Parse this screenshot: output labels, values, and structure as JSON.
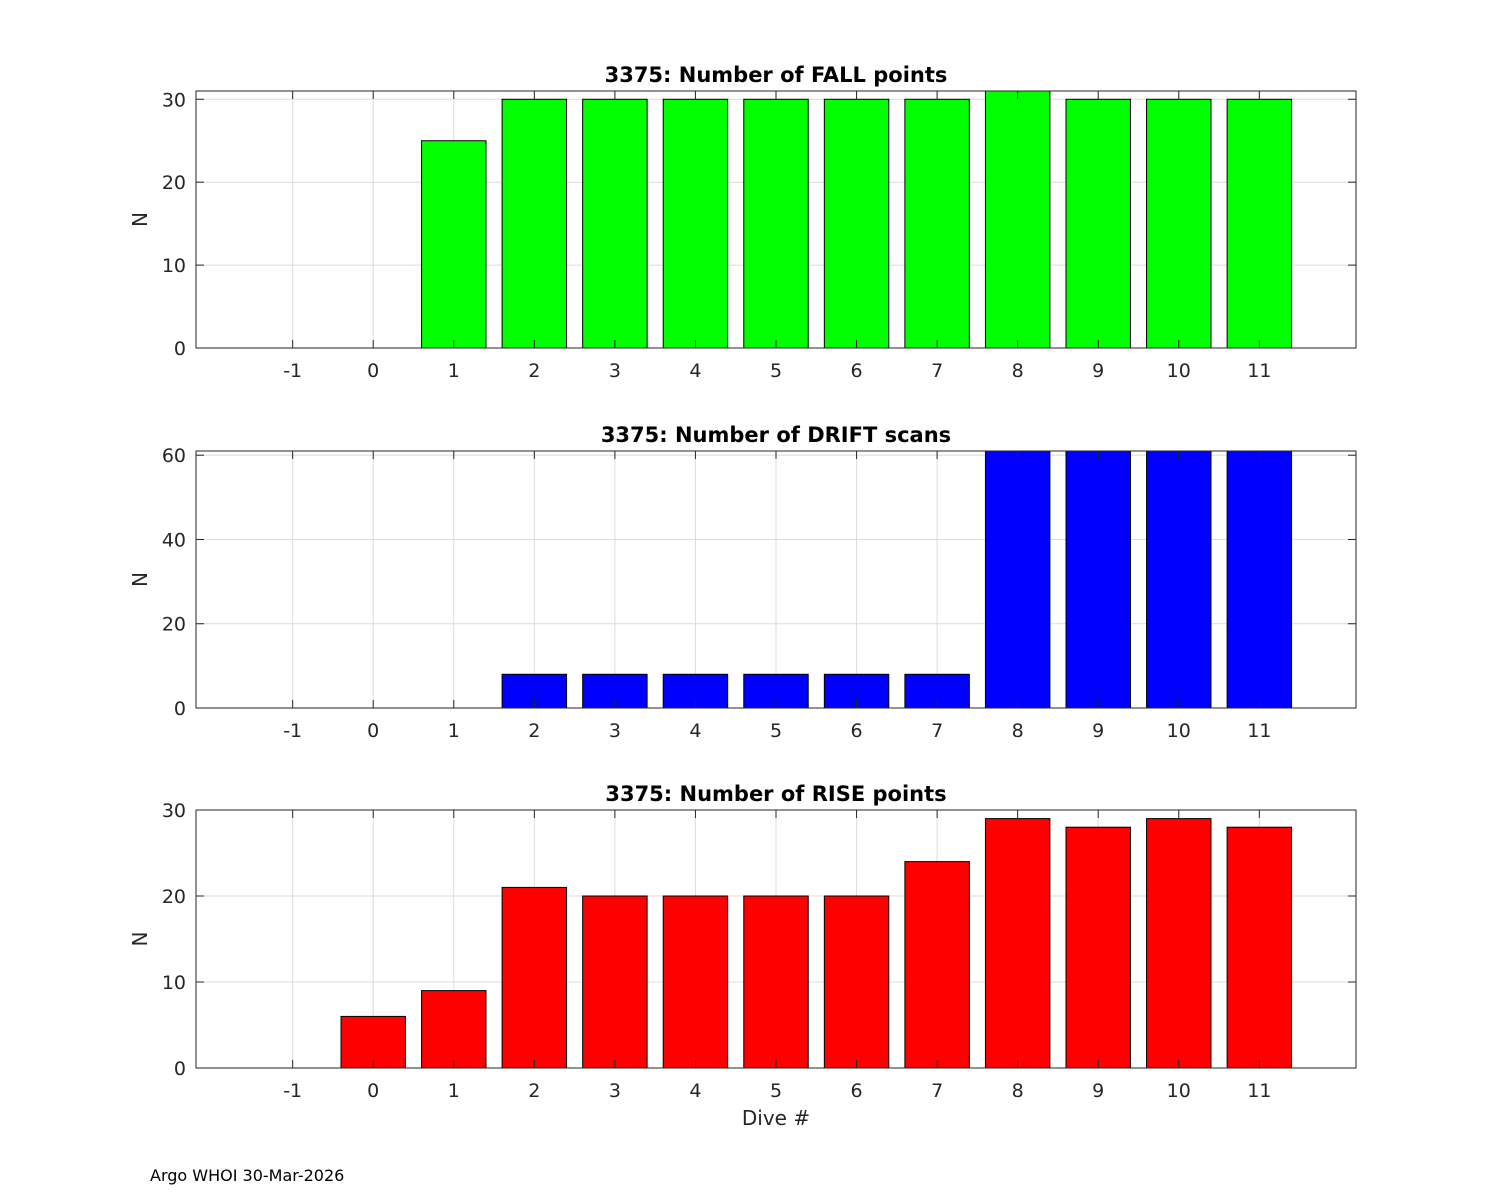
{
  "footer": "Argo WHOI 30-Mar-2026",
  "chart_data": [
    {
      "type": "bar",
      "title": "3375: Number of FALL points",
      "xlabel": "",
      "ylabel": "N",
      "color": "#00ff00",
      "categories": [
        -1,
        0,
        1,
        2,
        3,
        4,
        5,
        6,
        7,
        8,
        9,
        10,
        11
      ],
      "values": [
        0,
        0,
        25,
        30,
        30,
        30,
        30,
        30,
        30,
        31,
        30,
        30,
        30
      ],
      "xlim": [
        -2.2,
        12.2
      ],
      "ylim": [
        0,
        31
      ],
      "yticks": [
        0,
        10,
        20,
        30
      ],
      "grid": true
    },
    {
      "type": "bar",
      "title": "3375: Number of DRIFT scans",
      "xlabel": "",
      "ylabel": "N",
      "color": "#0000ff",
      "categories": [
        -1,
        0,
        1,
        2,
        3,
        4,
        5,
        6,
        7,
        8,
        9,
        10,
        11
      ],
      "values": [
        0,
        0,
        0,
        8,
        8,
        8,
        8,
        8,
        8,
        61,
        61,
        61,
        61
      ],
      "xlim": [
        -2.2,
        12.2
      ],
      "ylim": [
        0,
        61
      ],
      "yticks": [
        0,
        20,
        40,
        60
      ],
      "grid": true
    },
    {
      "type": "bar",
      "title": "3375: Number of RISE points",
      "xlabel": "Dive #",
      "ylabel": "N",
      "color": "#ff0000",
      "categories": [
        -1,
        0,
        1,
        2,
        3,
        4,
        5,
        6,
        7,
        8,
        9,
        10,
        11
      ],
      "values": [
        0,
        6,
        9,
        21,
        20,
        20,
        20,
        20,
        24,
        29,
        28,
        29,
        28
      ],
      "xlim": [
        -2.2,
        12.2
      ],
      "ylim": [
        0,
        30
      ],
      "yticks": [
        0,
        10,
        20,
        30
      ],
      "grid": true
    }
  ]
}
